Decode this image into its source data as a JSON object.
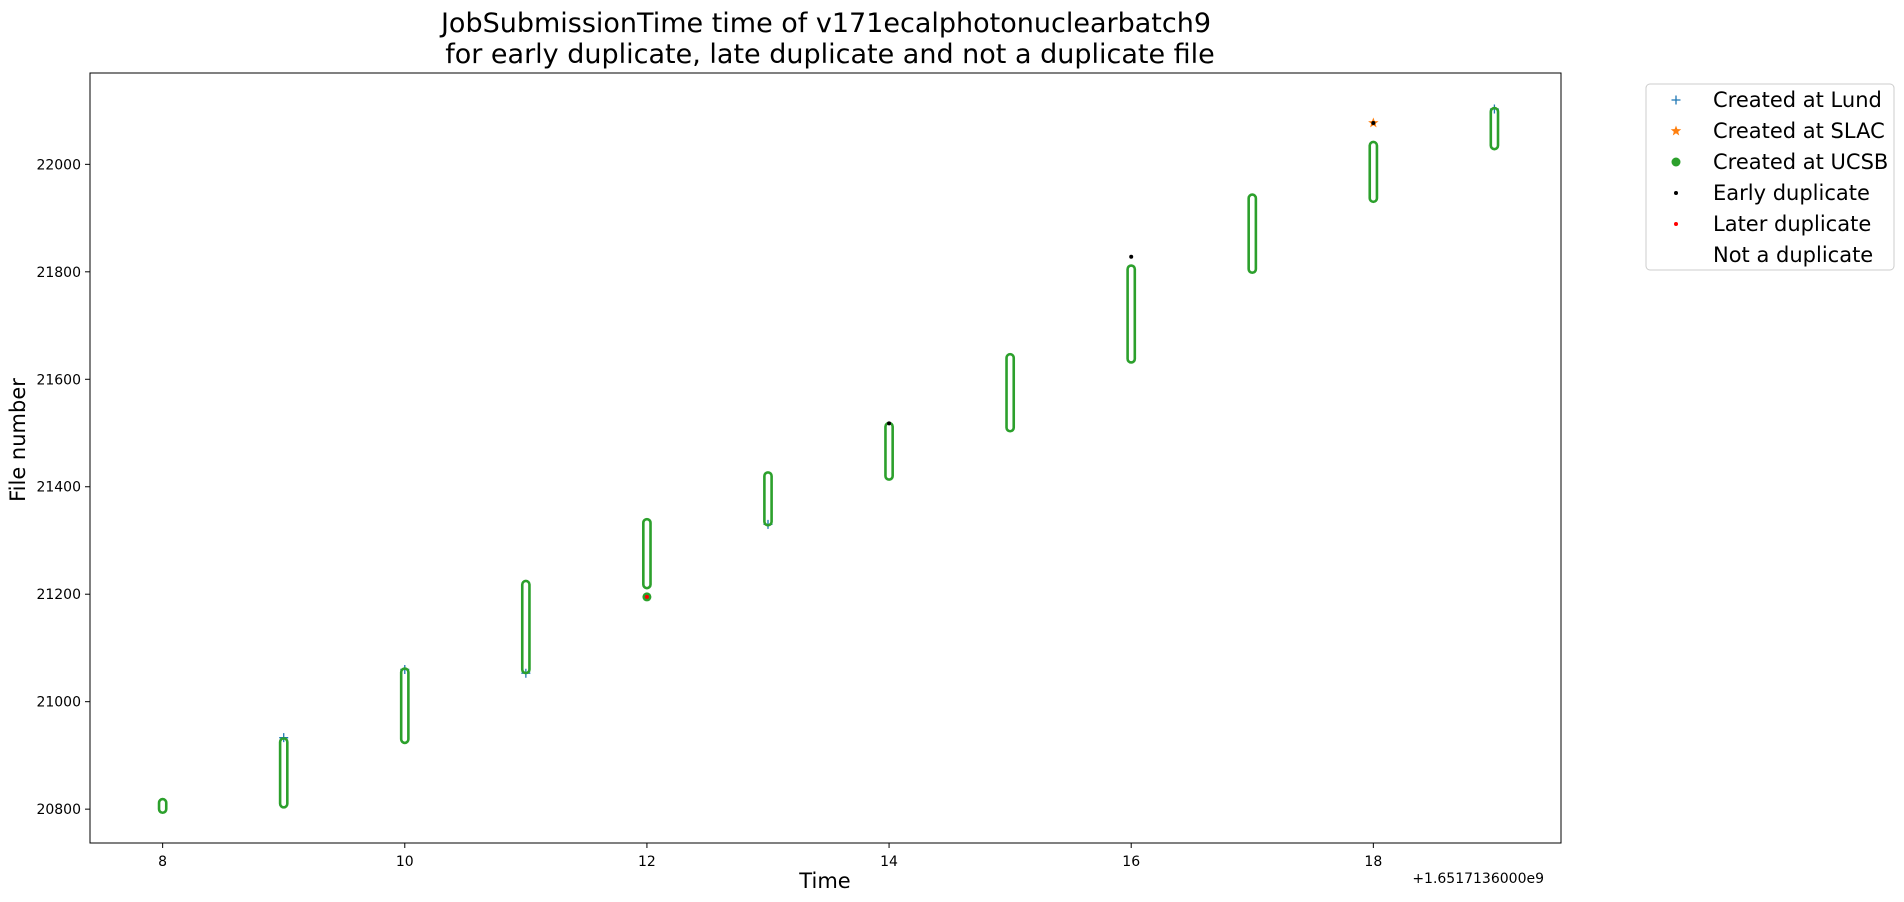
{
  "chart_data": {
    "type": "scatter",
    "title_line1": "JobSubmissionTime time of v171ecalphotonuclearbatch9",
    "title_line2": "for early duplicate, late duplicate and not a duplicate file",
    "xlabel": "Time",
    "ylabel": "File number",
    "x_offset_label": "+1.6517136000e9",
    "xlim": [
      7.4,
      19.55
    ],
    "ylim": [
      20737,
      22170
    ],
    "x_ticks": [
      8,
      10,
      12,
      14,
      16,
      18
    ],
    "y_ticks": [
      20800,
      21000,
      21200,
      21400,
      21600,
      21800,
      22000
    ],
    "legend_position": "outside-top-right",
    "colors": {
      "lund": "#1f77b4",
      "slac": "#ff7f0e",
      "ucsb": "#2ca02c",
      "early": "#000000",
      "later": "#ff0000"
    },
    "legend": [
      {
        "label": "Created at Lund",
        "marker": "plus",
        "color": "#1f77b4"
      },
      {
        "label": "Created at SLAC",
        "marker": "star",
        "color": "#ff7f0e"
      },
      {
        "label": "Created at UCSB",
        "marker": "circle",
        "color": "#2ca02c"
      },
      {
        "label": "Early duplicate",
        "marker": "dot",
        "color": "#000000"
      },
      {
        "label": "Later duplicate",
        "marker": "dot",
        "color": "#ff0000"
      },
      {
        "label": "Not a duplicate",
        "marker": "none",
        "color": "#ffffff"
      }
    ],
    "series": [
      {
        "name": "Created at UCSB",
        "marker": "circle",
        "color": "#2ca02c",
        "columns": [
          {
            "x": 8,
            "y_min": 20800,
            "y_max": 20812
          },
          {
            "x": 9,
            "y_min": 20810,
            "y_max": 20925
          },
          {
            "x": 10,
            "y_min": 20930,
            "y_max": 21055
          },
          {
            "x": 11,
            "y_min": 21060,
            "y_max": 21218
          },
          {
            "x": 12,
            "y_min": 21218,
            "y_max": 21333
          },
          {
            "x": 13,
            "y_min": 21335,
            "y_max": 21420
          },
          {
            "x": 14,
            "y_min": 21420,
            "y_max": 21512
          },
          {
            "x": 15,
            "y_min": 21510,
            "y_max": 21640
          },
          {
            "x": 16,
            "y_min": 21638,
            "y_max": 21805
          },
          {
            "x": 17,
            "y_min": 21805,
            "y_max": 21937
          },
          {
            "x": 18,
            "y_min": 21937,
            "y_max": 22035
          },
          {
            "x": 19,
            "y_min": 22035,
            "y_max": 22098
          }
        ],
        "points": [
          {
            "x": 12,
            "y": 21195
          }
        ]
      },
      {
        "name": "Created at Lund",
        "marker": "plus",
        "color": "#1f77b4",
        "points": [
          {
            "x": 9,
            "y": 20933
          },
          {
            "x": 10,
            "y": 21060
          },
          {
            "x": 11,
            "y": 21053
          },
          {
            "x": 13,
            "y": 21330
          },
          {
            "x": 19,
            "y": 22103
          }
        ]
      },
      {
        "name": "Created at SLAC",
        "marker": "star",
        "color": "#ff7f0e",
        "points": [
          {
            "x": 18,
            "y": 22077
          }
        ]
      },
      {
        "name": "Early duplicate",
        "marker": "dot",
        "color": "#000000",
        "points": [
          {
            "x": 14,
            "y": 21518
          },
          {
            "x": 16,
            "y": 21828
          },
          {
            "x": 18,
            "y": 22077
          }
        ]
      },
      {
        "name": "Later duplicate",
        "marker": "dot",
        "color": "#ff0000",
        "points": [
          {
            "x": 12,
            "y": 21195
          }
        ]
      }
    ]
  }
}
